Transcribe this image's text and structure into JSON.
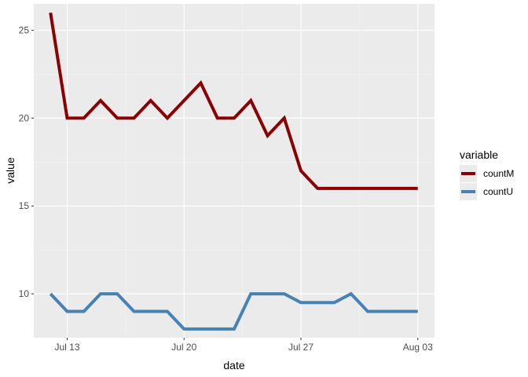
{
  "chart_data": {
    "type": "line",
    "xlabel": "date",
    "ylabel": "value",
    "xlim": [
      "2020-07-11",
      "2020-08-04"
    ],
    "ylim": [
      7.5,
      26.5
    ],
    "x_ticks": [
      {
        "date": "2020-07-13",
        "label": "Jul 13"
      },
      {
        "date": "2020-07-20",
        "label": "Jul 20"
      },
      {
        "date": "2020-07-27",
        "label": "Jul 27"
      },
      {
        "date": "2020-08-03",
        "label": "Aug 03"
      }
    ],
    "y_ticks": [
      10,
      15,
      20,
      25
    ],
    "grid": true,
    "legend": {
      "title": "variable",
      "position": "right"
    },
    "x": [
      "2020-07-12",
      "2020-07-13",
      "2020-07-14",
      "2020-07-15",
      "2020-07-16",
      "2020-07-17",
      "2020-07-18",
      "2020-07-19",
      "2020-07-20",
      "2020-07-21",
      "2020-07-22",
      "2020-07-23",
      "2020-07-24",
      "2020-07-25",
      "2020-07-26",
      "2020-07-27",
      "2020-07-28",
      "2020-07-29",
      "2020-07-30",
      "2020-07-31",
      "2020-08-01",
      "2020-08-02",
      "2020-08-03"
    ],
    "series": [
      {
        "name": "countM",
        "color": "#8B0000",
        "values": [
          26,
          20,
          20,
          21,
          20,
          20,
          21,
          20,
          21,
          22,
          20,
          20,
          21,
          19,
          20,
          17,
          16,
          16,
          16,
          16,
          16,
          16,
          16
        ]
      },
      {
        "name": "countU",
        "color": "#4682B4",
        "values": [
          10,
          9,
          9,
          10,
          10,
          9,
          9,
          9,
          8,
          8,
          8,
          8,
          10,
          10,
          10,
          9.5,
          9.5,
          9.5,
          10,
          9,
          9,
          9,
          9
        ]
      }
    ]
  },
  "colors": {
    "panel_bg": "#EBEBEB",
    "grid_major": "#FFFFFF",
    "grid_minor": "#F5F5F5",
    "legend_key_bg": "#EBEBEB"
  }
}
